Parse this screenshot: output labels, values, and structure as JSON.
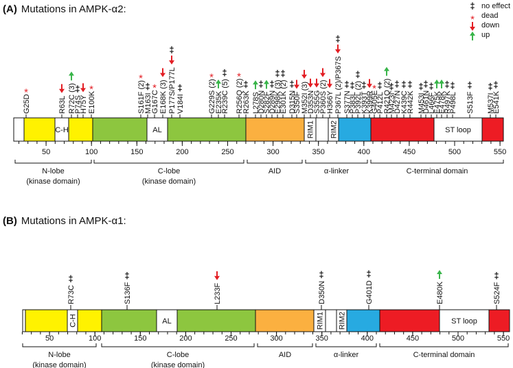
{
  "legend": [
    {
      "symbol": "‡",
      "label": "no effect"
    },
    {
      "symbol": "*",
      "label": "dead"
    },
    {
      "label": "down"
    },
    {
      "label": "up"
    }
  ],
  "panels": [
    {
      "tag": "(A)",
      "title": "Mutations in AMPK-α2:",
      "domains": [
        "C-H",
        "AL",
        "RIM1",
        "RIM2",
        "ST loop"
      ],
      "ticks": [
        50,
        100,
        150,
        200,
        250,
        300,
        350,
        400,
        450,
        500,
        550
      ],
      "regions": [
        {
          "label": "N-lobe",
          "sublabel": "(kinase domain)"
        },
        {
          "label": "C-lobe",
          "sublabel": "(kinase domain)"
        },
        {
          "label": "AID"
        },
        {
          "label": "α-linker"
        },
        {
          "label": "C-terminal domain"
        }
      ],
      "mutations": [
        {
          "label": "G25D",
          "effects": [
            "dead"
          ]
        },
        {
          "label": "R63L",
          "effects": [
            "down"
          ]
        },
        {
          "label": "R72C (3)",
          "effects": [
            "up"
          ]
        },
        {
          "label": "P74S",
          "effects": [
            "no effect"
          ]
        },
        {
          "label": "H75Y",
          "effects": [
            "down"
          ]
        },
        {
          "label": "E100K",
          "effects": [
            "dead"
          ]
        },
        {
          "label": "S161F (2)",
          "effects": [
            "dead"
          ]
        },
        {
          "label": "M163I",
          "effects": [
            "no effect"
          ]
        },
        {
          "label": "G167C",
          "effects": [
            "dead"
          ]
        },
        {
          "label": "E168K (3)",
          "effects": [
            "down"
          ]
        },
        {
          "label": "P177S/P177L",
          "effects": [
            "down",
            "no effect"
          ]
        },
        {
          "label": "V184I",
          "effects": [
            "no effect"
          ]
        },
        {
          "label": "G229S (2)",
          "effects": [
            "dead"
          ]
        },
        {
          "label": "E235K",
          "effects": [
            "up"
          ]
        },
        {
          "label": "R239C (5)",
          "effects": [
            "no effect"
          ]
        },
        {
          "label": "R256Q (2)",
          "effects": [
            "dead"
          ]
        },
        {
          "label": "R263K",
          "effects": [
            "no effect"
          ]
        },
        {
          "label": "L278S",
          "effects": [
            "up"
          ]
        },
        {
          "label": "D280N",
          "effects": [
            "no effect"
          ]
        },
        {
          "label": "S282F",
          "effects": [
            "up"
          ]
        },
        {
          "label": "D289N",
          "effects": [
            "no effect"
          ]
        },
        {
          "label": "E298K (3)",
          "effects": [
            "no effect"
          ]
        },
        {
          "label": "E301K (2)",
          "effects": [
            "no effect"
          ]
        },
        {
          "label": "D315N",
          "effects": [
            "no effect"
          ]
        },
        {
          "label": "S350F",
          "effects": [
            "down"
          ]
        },
        {
          "label": "M352I (3)",
          "effects": [
            "down"
          ]
        },
        {
          "label": "D353N",
          "effects": [
            "down"
          ]
        },
        {
          "label": "S355G",
          "effects": [
            "down"
          ]
        },
        {
          "label": "P360S (2)",
          "effects": [
            "down"
          ]
        },
        {
          "label": "H366Y",
          "effects": [
            "down"
          ]
        },
        {
          "label": "P367L (2)/P367S",
          "effects": [
            "down",
            "no effect"
          ]
        },
        {
          "label": "S377N",
          "effects": [
            "no effect"
          ]
        },
        {
          "label": "P383L",
          "effects": [
            "no effect"
          ]
        },
        {
          "label": "P392L (2)",
          "effects": [
            "no effect"
          ]
        },
        {
          "label": "K393T",
          "effects": [
            "no effect"
          ]
        },
        {
          "label": "K399R",
          "effects": [
            "down"
          ]
        },
        {
          "label": "G405E",
          "effects": [
            "dead"
          ]
        },
        {
          "label": "P412L",
          "effects": [
            "no effect"
          ]
        },
        {
          "label": "R421Q (2)",
          "effects": [
            "up"
          ]
        },
        {
          "label": "M423I",
          "effects": [
            "no effect"
          ]
        },
        {
          "label": "D427N",
          "effects": [
            "no effect"
          ]
        },
        {
          "label": "K439C",
          "effects": [
            "no effect"
          ]
        },
        {
          "label": "R442K",
          "effects": [
            "no effect"
          ]
        },
        {
          "label": "M453I",
          "effects": [
            "no effect"
          ]
        },
        {
          "label": "D461N",
          "effects": [
            "no effect"
          ]
        },
        {
          "label": "L466F",
          "effects": [
            "no effect"
          ]
        },
        {
          "label": "E475K",
          "effects": [
            "up"
          ]
        },
        {
          "label": "E478K",
          "effects": [
            "up"
          ]
        },
        {
          "label": "R497K",
          "effects": [
            "no effect"
          ]
        },
        {
          "label": "P498L",
          "effects": [
            "no effect"
          ]
        },
        {
          "label": "S513F",
          "effects": [
            "no effect"
          ]
        },
        {
          "label": "M537I",
          "effects": [
            "no effect"
          ]
        },
        {
          "label": "E541K",
          "effects": [
            "no effect"
          ]
        }
      ]
    },
    {
      "tag": "(B)",
      "title": "Mutations in AMPK-α1:",
      "domains": [
        "C-H",
        "AL",
        "RIM1",
        "RIM2",
        "ST loop"
      ],
      "ticks": [
        50,
        100,
        150,
        200,
        250,
        300,
        350,
        400,
        450,
        500,
        550
      ],
      "regions": [
        {
          "label": "N-lobe",
          "sublabel": "(kinase domain)"
        },
        {
          "label": "C-lobe",
          "sublabel": "(kinase domain)"
        },
        {
          "label": "AID"
        },
        {
          "label": "α-linker"
        },
        {
          "label": "C-terminal domain"
        }
      ],
      "mutations": [
        {
          "label": "R73C",
          "effects": [
            "no effect"
          ]
        },
        {
          "label": "S136F",
          "effects": [
            "no effect"
          ]
        },
        {
          "label": "L233F",
          "effects": [
            "down"
          ]
        },
        {
          "label": "D350N",
          "effects": [
            "no effect"
          ]
        },
        {
          "label": "G401D",
          "effects": [
            "no effect"
          ]
        },
        {
          "label": "E480K",
          "effects": [
            "up"
          ]
        },
        {
          "label": "S524F",
          "effects": [
            "no effect"
          ]
        }
      ]
    }
  ]
}
